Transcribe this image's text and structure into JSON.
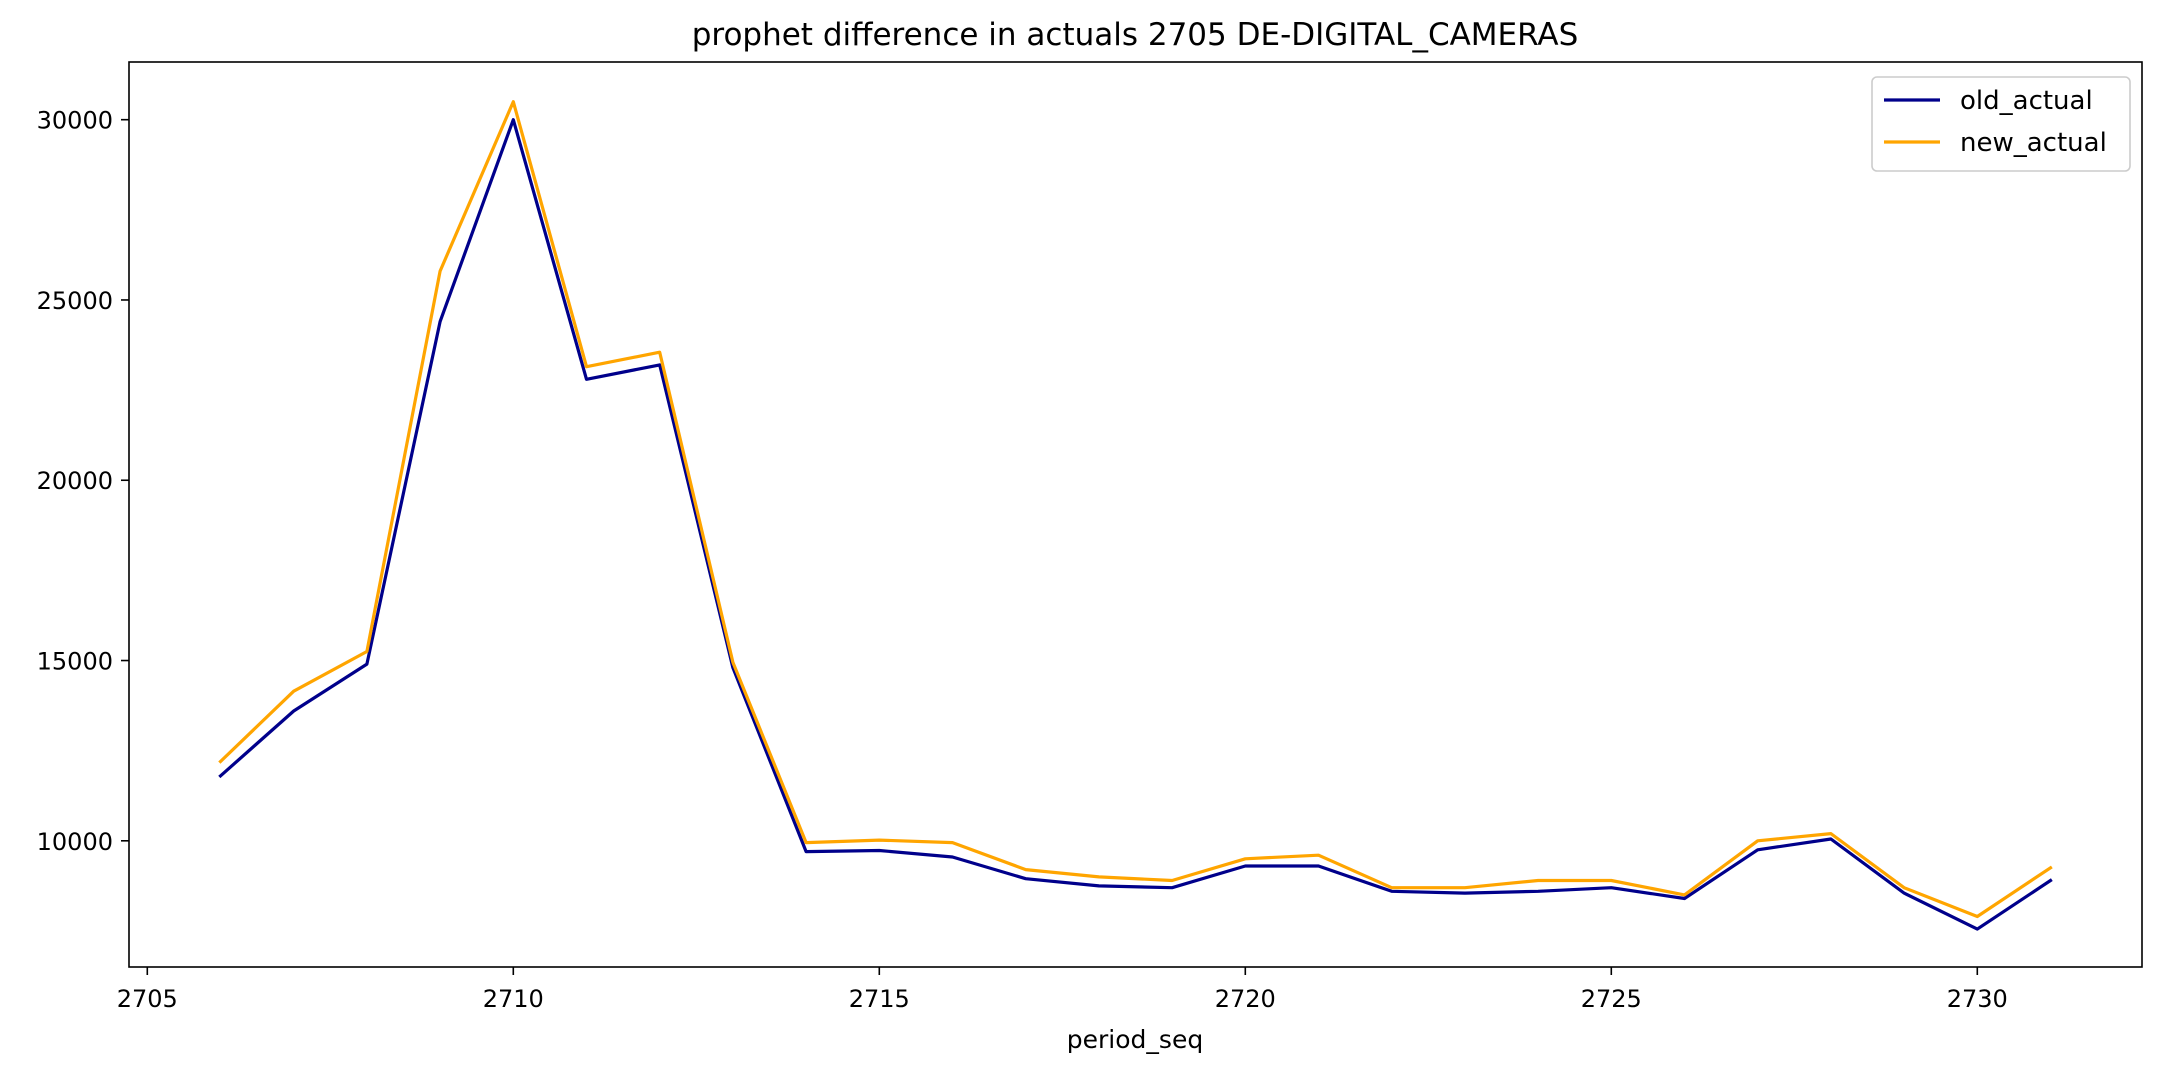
{
  "chart_data": {
    "type": "line",
    "title": "prophet difference in actuals 2705 DE-DIGITAL_CAMERAS",
    "xlabel": "period_seq",
    "ylabel": "",
    "xlim": [
      2704.75,
      2732.25
    ],
    "ylim": [
      6500,
      31600
    ],
    "xticks": [
      2705,
      2710,
      2715,
      2720,
      2725,
      2730
    ],
    "yticks": [
      10000,
      15000,
      20000,
      25000,
      30000
    ],
    "grid": false,
    "legend_position": "top-right",
    "x": [
      2706,
      2707,
      2708,
      2709,
      2710,
      2711,
      2712,
      2713,
      2714,
      2715,
      2716,
      2717,
      2718,
      2719,
      2720,
      2721,
      2722,
      2723,
      2724,
      2725,
      2726,
      2727,
      2728,
      2729,
      2730,
      2731
    ],
    "series": [
      {
        "name": "old_actual",
        "color": "#00008b",
        "values": [
          11800,
          13600,
          14900,
          24400,
          30000,
          22800,
          23200,
          14800,
          9700,
          9730,
          9550,
          8950,
          8750,
          8700,
          9300,
          9300,
          8600,
          8550,
          8600,
          8700,
          8400,
          9750,
          10050,
          8550,
          7550,
          8900
        ]
      },
      {
        "name": "new_actual",
        "color": "#ffa500",
        "values": [
          12200,
          14150,
          15250,
          25800,
          30500,
          23150,
          23550,
          14950,
          9950,
          10020,
          9950,
          9200,
          9000,
          8900,
          9500,
          9600,
          8700,
          8700,
          8900,
          8900,
          8500,
          10000,
          10200,
          8700,
          7900,
          9250
        ]
      }
    ]
  }
}
